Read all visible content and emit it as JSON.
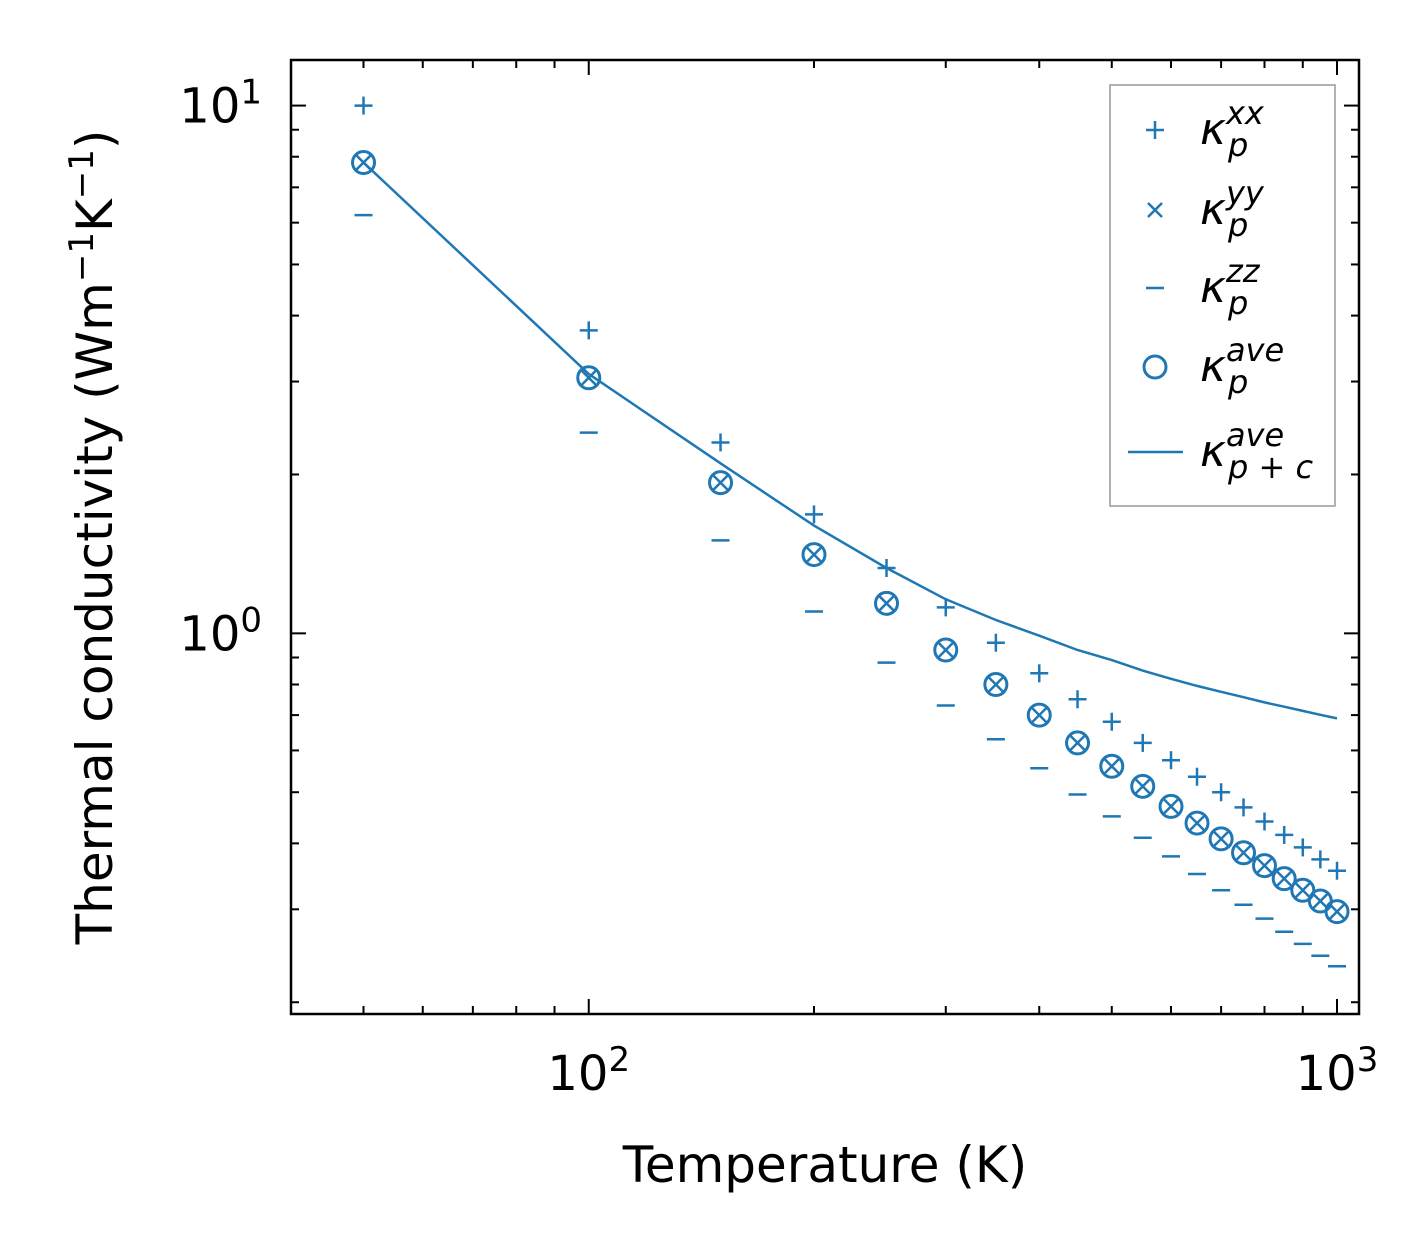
{
  "chart_data": {
    "type": "scatter",
    "x_scale": "log",
    "y_scale": "log",
    "xlabel": "Temperature (K)",
    "ylabel": "Thermal conductivity (Wm⁻¹K⁻¹)",
    "xlim": [
      40,
      1070
    ],
    "ylim": [
      0.19,
      12.2
    ],
    "x_ticks": [
      {
        "value": 100,
        "base": "10",
        "exp": "2"
      },
      {
        "value": 1000,
        "base": "10",
        "exp": "3"
      }
    ],
    "y_ticks": [
      {
        "value": 1,
        "base": "10",
        "exp": "0"
      },
      {
        "value": 10,
        "base": "10",
        "exp": "1"
      }
    ],
    "color": "#1f77b4",
    "x": [
      50,
      100,
      150,
      200,
      250,
      300,
      350,
      400,
      450,
      500,
      550,
      600,
      650,
      700,
      750,
      800,
      850,
      900,
      950,
      1000
    ],
    "series": [
      {
        "name": "xx",
        "marker": "plus",
        "legend": {
          "base": "κ",
          "sup": "xx",
          "sub": "p"
        },
        "values": [
          10.0,
          3.75,
          2.3,
          1.68,
          1.33,
          1.12,
          0.96,
          0.84,
          0.75,
          0.68,
          0.62,
          0.575,
          0.535,
          0.5,
          0.468,
          0.44,
          0.415,
          0.393,
          0.373,
          0.355
        ]
      },
      {
        "name": "yy",
        "marker": "x",
        "legend": {
          "base": "κ",
          "sup": "yy",
          "sub": "p"
        },
        "values": [
          7.8,
          3.05,
          1.93,
          1.41,
          1.14,
          0.93,
          0.8,
          0.7,
          0.62,
          0.56,
          0.513,
          0.47,
          0.437,
          0.408,
          0.384,
          0.363,
          0.343,
          0.326,
          0.311,
          0.297
        ]
      },
      {
        "name": "zz",
        "marker": "minus",
        "legend": {
          "base": "κ",
          "sup": "zz",
          "sub": "p"
        },
        "values": [
          6.2,
          2.4,
          1.5,
          1.1,
          0.88,
          0.73,
          0.63,
          0.555,
          0.495,
          0.45,
          0.41,
          0.378,
          0.35,
          0.326,
          0.306,
          0.288,
          0.272,
          0.258,
          0.245,
          0.234
        ]
      },
      {
        "name": "ave",
        "marker": "circle",
        "legend": {
          "base": "κ",
          "sup": "ave",
          "sub": "p"
        },
        "values": [
          7.8,
          3.05,
          1.93,
          1.41,
          1.14,
          0.93,
          0.8,
          0.7,
          0.62,
          0.56,
          0.513,
          0.47,
          0.437,
          0.408,
          0.384,
          0.363,
          0.343,
          0.326,
          0.311,
          0.297
        ]
      },
      {
        "name": "ave p+c",
        "marker": "line",
        "legend": {
          "base": "κ",
          "sup": "ave",
          "sub": "p + c"
        },
        "values": [
          7.8,
          3.1,
          2.1,
          1.6,
          1.33,
          1.16,
          1.06,
          0.99,
          0.93,
          0.89,
          0.85,
          0.82,
          0.795,
          0.775,
          0.757,
          0.74,
          0.726,
          0.713,
          0.701,
          0.69
        ]
      }
    ],
    "legend_position": "top-right"
  }
}
